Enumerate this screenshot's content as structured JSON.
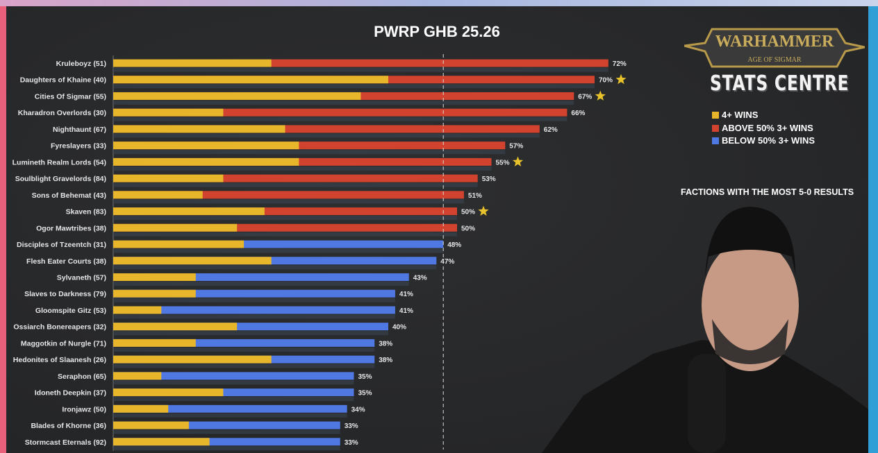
{
  "chart_data": {
    "type": "bar",
    "stacked": true,
    "orientation": "horizontal",
    "title": "PWRP GHB 25.26",
    "categories": [
      "Kruleboyz (51)",
      "Daughters of Khaine (40)",
      "Cities Of Sigmar (55)",
      "Kharadron Overlords (30)",
      "Nighthaunt (67)",
      "Fyreslayers (33)",
      "Lumineth Realm Lords (54)",
      "Soulblight Gravelords (84)",
      "Sons of Behemat (43)",
      "Skaven (83)",
      "Ogor Mawtribes (38)",
      "Disciples of Tzeentch (31)",
      "Flesh Eater Courts (38)",
      "Sylvaneth (57)",
      "Slaves to Darkness (79)",
      "Gloomspite Gitz (53)",
      "Ossiarch Bonereapers (32)",
      "Maggotkin of Nurgle (71)",
      "Hedonites of Slaanesh (26)",
      "Seraphon (65)",
      "Idoneth Deepkin (37)",
      "Ironjawz (50)",
      "Blades of Khorne (36)",
      "Stormcast Eternals (92)"
    ],
    "total_labels": [
      "72%",
      "70%",
      "67%",
      "66%",
      "62%",
      "57%",
      "55%",
      "53%",
      "51%",
      "50%",
      "50%",
      "48%",
      "47%",
      "43%",
      "41%",
      "41%",
      "40%",
      "38%",
      "38%",
      "35%",
      "35%",
      "34%",
      "33%",
      "33%"
    ],
    "totals": [
      72,
      70,
      67,
      66,
      62,
      57,
      55,
      53,
      51,
      50,
      50,
      48,
      47,
      43,
      41,
      41,
      40,
      38,
      38,
      35,
      35,
      34,
      33,
      33
    ],
    "four_plus_wins": [
      23,
      40,
      36,
      16,
      25,
      27,
      27,
      16,
      13,
      22,
      18,
      19,
      23,
      12,
      12,
      7,
      18,
      12,
      23,
      7,
      16,
      8,
      11,
      14
    ],
    "starred": [
      false,
      true,
      true,
      false,
      false,
      false,
      true,
      false,
      false,
      true,
      false,
      false,
      false,
      false,
      false,
      false,
      false,
      false,
      false,
      false,
      false,
      false,
      false,
      false
    ],
    "reference_line": 48,
    "xlim": [
      0,
      75
    ],
    "grid": false,
    "legend": {
      "placement": "right",
      "items": [
        {
          "label": "4+ WINS",
          "color": "#e8b62b"
        },
        {
          "label": "ABOVE 50% 3+ WINS",
          "color": "#d2432f"
        },
        {
          "label": "BELOW 50% 3+ WINS",
          "color": "#4f78e3"
        }
      ]
    },
    "star_color": "#e8c22b"
  },
  "branding": {
    "logo_main": "WARHAMMER",
    "logo_sub": "AGE OF SIGMAR",
    "stats": "STATS CENTRE"
  },
  "note": "FACTIONS WITH THE MOST 5-0 RESULTS"
}
